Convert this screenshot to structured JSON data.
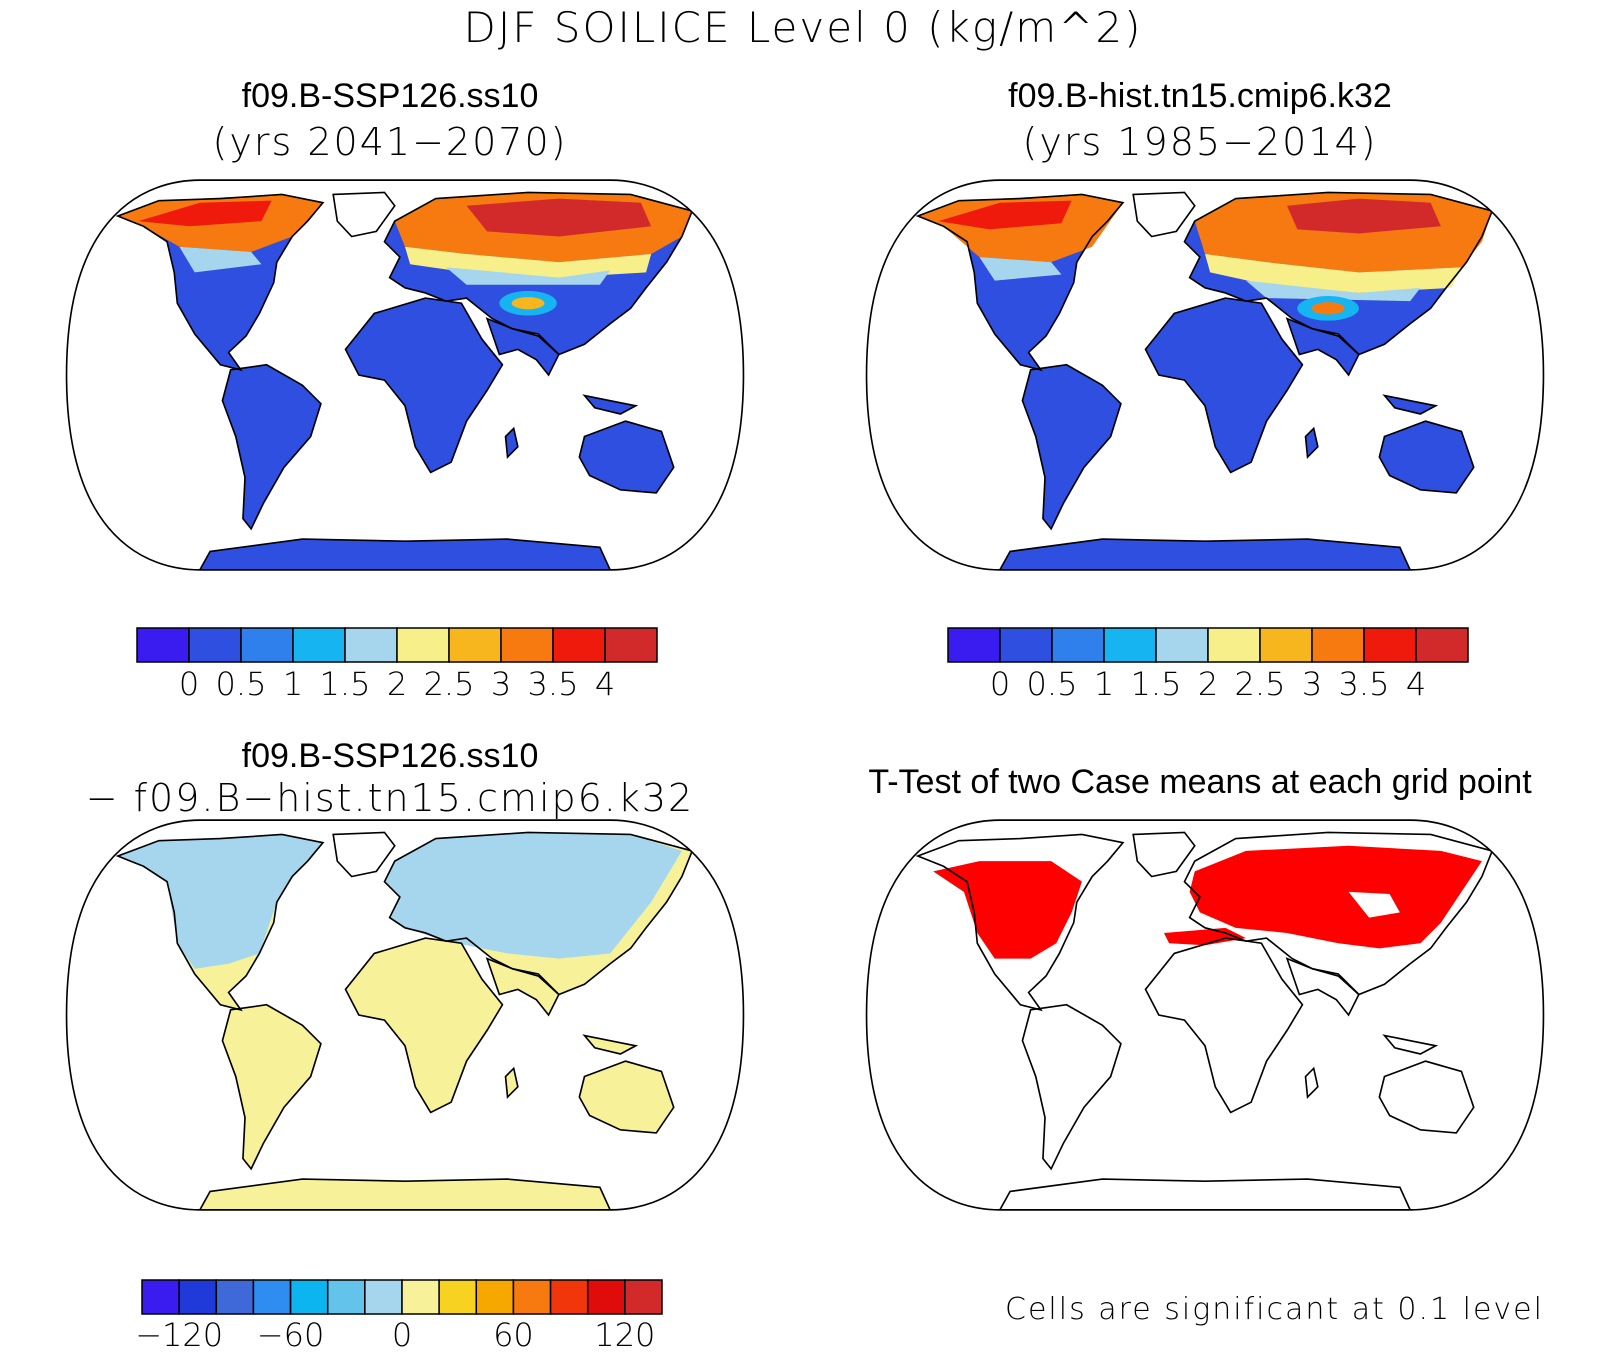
{
  "title": "DJF SOILICE Level 0 (kg/m^2)",
  "panels": [
    {
      "name": "f09.B-SSP126.ss10",
      "subtitle": "(yrs 2041−2070)"
    },
    {
      "name": "f09.B-hist.tn15.cmip6.k32",
      "subtitle": "(yrs 1985−2014)"
    },
    {
      "name": "f09.B-SSP126.ss10",
      "subtitle": "− f09.B−hist.tn15.cmip6.k32"
    },
    {
      "name": "T-Test of two Case means at each grid point",
      "subtitle": ""
    }
  ],
  "colorbar_abs": {
    "colors": [
      "#3a1cf0",
      "#2f4fe0",
      "#2f7fec",
      "#16b4f0",
      "#a6d6ee",
      "#f7ef8a",
      "#f7b51e",
      "#f77a10",
      "#f01a0c",
      "#d22a2a"
    ],
    "labels": [
      "0",
      "0.5",
      "1",
      "1.5",
      "2",
      "2.5",
      "3",
      "3.5",
      "4"
    ]
  },
  "colorbar_diff": {
    "colors": [
      "#3a1cf0",
      "#1f3ad8",
      "#3f68d8",
      "#2f8cf0",
      "#0cb4f0",
      "#63c3ea",
      "#a6d6ee",
      "#f7f29a",
      "#f7d220",
      "#f7a800",
      "#f77a10",
      "#f0360a",
      "#e00c0c",
      "#d22a2a"
    ],
    "labels": [
      "−120",
      "−60",
      "0",
      "60",
      "120"
    ]
  },
  "significance_note": "Cells are significant at 0.1 level",
  "colors": {
    "ocean": "#ffffff",
    "land_warm": "#2f4fe0",
    "ttest_sig": "#ff0000",
    "diff_pos": "#f7f29a",
    "diff_neg": "#a6d6ee"
  }
}
